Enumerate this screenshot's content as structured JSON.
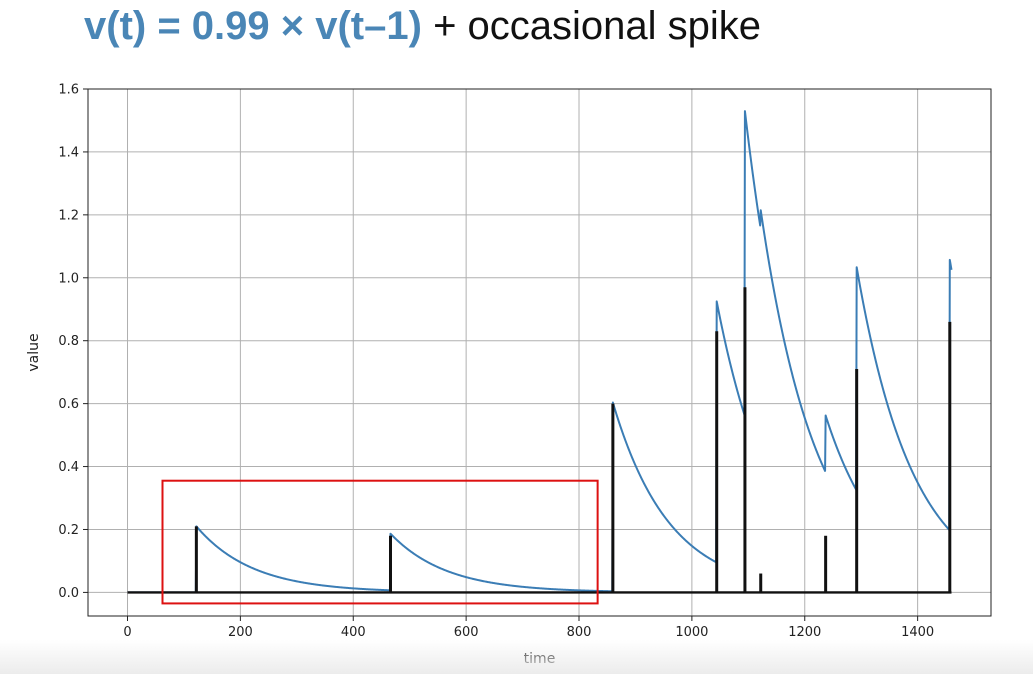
{
  "title": {
    "equation": "v(t) = 0.99 × v(t–1)",
    "rest": "+ occasional spike"
  },
  "chart_data": {
    "type": "line",
    "xlabel": "time",
    "ylabel": "value",
    "xlim": [
      -70,
      1530
    ],
    "ylim": [
      -0.075,
      1.6
    ],
    "xticks": [
      0,
      200,
      400,
      600,
      800,
      1000,
      1200,
      1400
    ],
    "yticks": [
      0.0,
      0.2,
      0.4,
      0.6,
      0.8,
      1.0,
      1.2,
      1.4,
      1.6
    ],
    "grid": true,
    "decay": 0.99,
    "t_end": 1460,
    "spikes": [
      {
        "t": 122,
        "height": 0.21
      },
      {
        "t": 466,
        "height": 0.18
      },
      {
        "t": 860,
        "height": 0.6
      },
      {
        "t": 1044,
        "height": 0.83
      },
      {
        "t": 1094,
        "height": 0.97
      },
      {
        "t": 1122,
        "height": 0.06
      },
      {
        "t": 1237,
        "height": 0.18
      },
      {
        "t": 1292,
        "height": 0.71
      },
      {
        "t": 1457,
        "height": 0.86
      }
    ],
    "series": [
      {
        "color": "#3b7db5",
        "style": "decaying value line"
      },
      {
        "color": "#111111",
        "style": "spike impulses"
      }
    ],
    "annotation": {
      "type": "highlight-box",
      "color": "#dd1111",
      "x_range": [
        62,
        833
      ],
      "y_range": [
        -0.035,
        0.355
      ]
    }
  }
}
